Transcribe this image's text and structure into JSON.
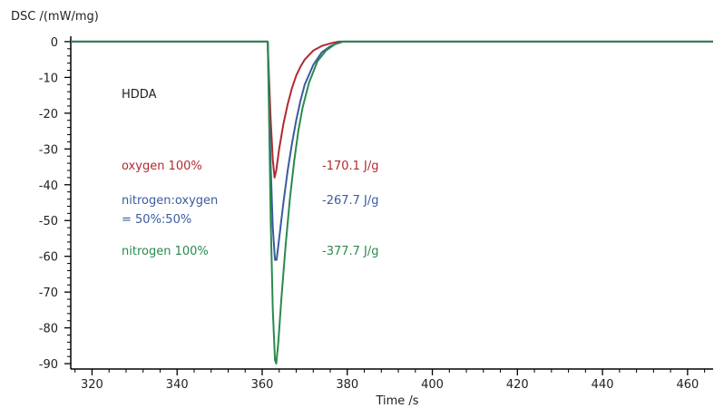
{
  "chart_data": {
    "type": "line",
    "ylabel": "DSC /(mW/mg)",
    "xlabel": "Time /s",
    "xlim": [
      315,
      466
    ],
    "ylim": [
      -91.5,
      1.5
    ],
    "x_ticks": [
      "320",
      "340",
      "360",
      "380",
      "400",
      "420",
      "440",
      "460"
    ],
    "x_tick_values": [
      320,
      340,
      360,
      380,
      400,
      420,
      440,
      460
    ],
    "y_ticks": [
      "0",
      "-10",
      "-20",
      "-30",
      "-40",
      "-50",
      "-60",
      "-70",
      "-80",
      "-90"
    ],
    "y_tick_values": [
      0,
      -10,
      -20,
      -30,
      -40,
      -50,
      -60,
      -70,
      -80,
      -90
    ],
    "annotation": "HDDA",
    "series": [
      {
        "name": "oxygen 100%",
        "name_lines": [
          "oxygen 100%"
        ],
        "value_label": "-170.1 J/g",
        "color": "#b02a30",
        "points": [
          [
            315,
            0
          ],
          [
            361.3,
            0
          ],
          [
            361.6,
            -10
          ],
          [
            362,
            -22
          ],
          [
            362.5,
            -33
          ],
          [
            362.9,
            -38
          ],
          [
            363.3,
            -36
          ],
          [
            364,
            -30
          ],
          [
            365,
            -23
          ],
          [
            366,
            -17.5
          ],
          [
            367,
            -13
          ],
          [
            368,
            -9.5
          ],
          [
            369,
            -7
          ],
          [
            370,
            -5
          ],
          [
            372,
            -2.5
          ],
          [
            374,
            -1.2
          ],
          [
            376,
            -0.5
          ],
          [
            378,
            0
          ],
          [
            466,
            0
          ]
        ]
      },
      {
        "name": "nitrogen:oxygen = 50%:50%",
        "name_lines": [
          "nitrogen:oxygen",
          "= 50%:50%"
        ],
        "value_label": "-267.7 J/g",
        "color": "#3a5b9e",
        "points": [
          [
            315,
            0
          ],
          [
            361.3,
            0
          ],
          [
            361.6,
            -15
          ],
          [
            362,
            -35
          ],
          [
            362.5,
            -52
          ],
          [
            363,
            -61
          ],
          [
            363.4,
            -61
          ],
          [
            364,
            -55
          ],
          [
            365,
            -45
          ],
          [
            366,
            -36
          ],
          [
            367,
            -28.5
          ],
          [
            368,
            -22
          ],
          [
            369,
            -16.5
          ],
          [
            370,
            -12
          ],
          [
            372,
            -6.5
          ],
          [
            374,
            -3
          ],
          [
            376,
            -1.3
          ],
          [
            378,
            -0.3
          ],
          [
            379,
            0
          ],
          [
            466,
            0
          ]
        ]
      },
      {
        "name": "nitrogen 100%",
        "name_lines": [
          "nitrogen 100%"
        ],
        "value_label": "-377.7 J/g",
        "color": "#2a8a4e",
        "points": [
          [
            315,
            0
          ],
          [
            361.3,
            0
          ],
          [
            361.6,
            -20
          ],
          [
            362,
            -50
          ],
          [
            362.5,
            -75
          ],
          [
            363,
            -89
          ],
          [
            363.3,
            -90
          ],
          [
            363.8,
            -84
          ],
          [
            364.5,
            -72
          ],
          [
            365.5,
            -57
          ],
          [
            366.5,
            -44
          ],
          [
            367.5,
            -33.5
          ],
          [
            368.5,
            -25
          ],
          [
            369.5,
            -18.5
          ],
          [
            371,
            -11.5
          ],
          [
            373,
            -5.5
          ],
          [
            375,
            -2.5
          ],
          [
            377,
            -0.8
          ],
          [
            379,
            0
          ],
          [
            466,
            0
          ]
        ]
      }
    ]
  }
}
